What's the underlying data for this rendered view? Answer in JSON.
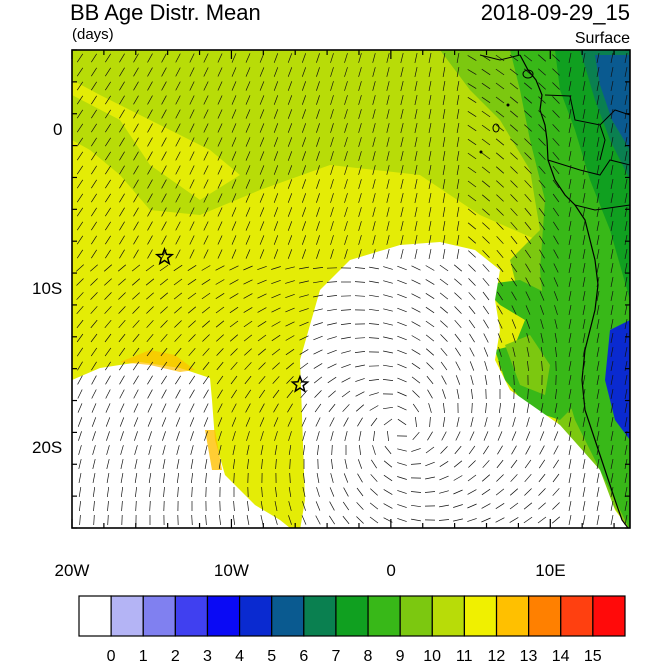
{
  "title": "BB Age Distr. Mean",
  "units": "(days)",
  "datetime": "2018-09-29_15",
  "level": "Surface",
  "map": {
    "lon_range": [
      -20,
      15
    ],
    "lat_range": [
      -25,
      5
    ],
    "x_ticks": [
      {
        "lon": -20,
        "label": "20W"
      },
      {
        "lon": -10,
        "label": "10W"
      },
      {
        "lon": 0,
        "label": "0"
      },
      {
        "lon": 10,
        "label": "10E"
      }
    ],
    "y_ticks": [
      {
        "lat": 0,
        "label": "0"
      },
      {
        "lat": -10,
        "label": "10S"
      },
      {
        "lat": -20,
        "label": "20S"
      }
    ],
    "markers": [
      {
        "name": "star-marker",
        "lon": -14.2,
        "lat": -8.0
      },
      {
        "name": "star-marker",
        "lon": -5.7,
        "lat": -16.0
      }
    ]
  },
  "colorbar": {
    "labels": [
      "0",
      "1",
      "2",
      "3",
      "4",
      "5",
      "6",
      "7",
      "8",
      "9",
      "10",
      "11",
      "12",
      "13",
      "14",
      "15"
    ],
    "colors": [
      "#ffffff",
      "#b4b4f5",
      "#8080f0",
      "#4040f0",
      "#0a0af5",
      "#0a2ad0",
      "#0a5a90",
      "#0a8050",
      "#10a020",
      "#38b818",
      "#7cc810",
      "#b8dc08",
      "#f0f000",
      "#ffc000",
      "#ff8000",
      "#ff4010",
      "#ff0a0a"
    ]
  }
}
